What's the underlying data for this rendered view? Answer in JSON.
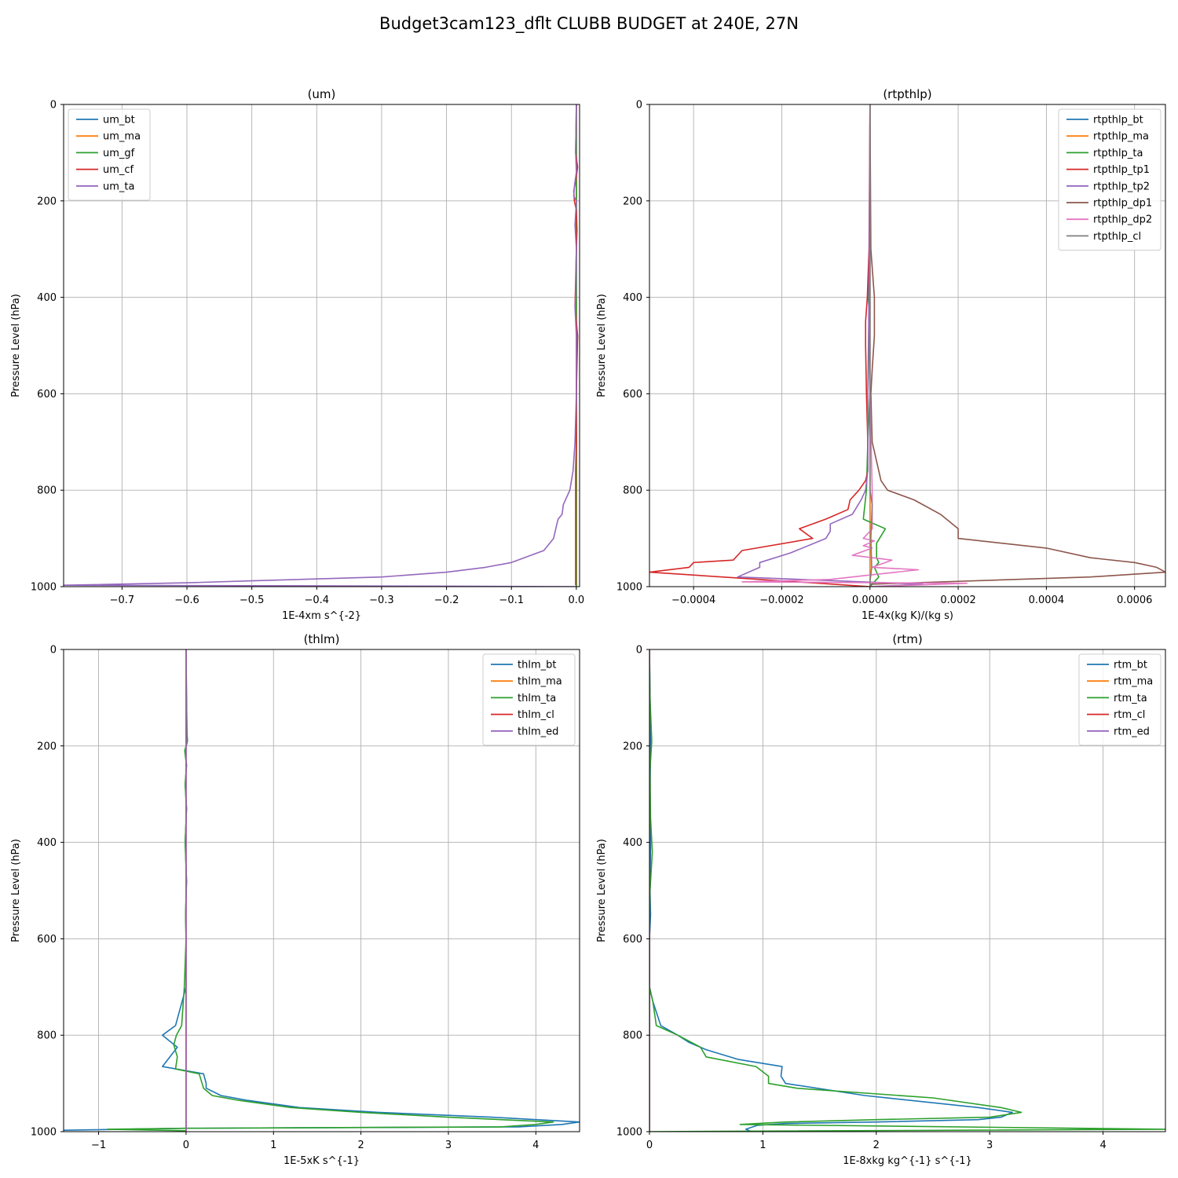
{
  "figure_title": "Budget3cam123_dflt CLUBB BUDGET at 240E, 27N",
  "chart_data": [
    {
      "type": "line",
      "title": "(um)",
      "xlabel": "1E-4xm s^{-2}",
      "ylabel": "Pressure Level (hPa)",
      "xlim": [
        -0.79,
        0.005
      ],
      "ylim": [
        1000,
        0
      ],
      "grid": true,
      "legend_position": "upper left",
      "xticks": [
        -0.7,
        -0.6,
        -0.5,
        -0.4,
        -0.3,
        -0.2,
        -0.1,
        0.0
      ],
      "xtick_labels": [
        "−0.7",
        "−0.6",
        "−0.5",
        "−0.4",
        "−0.3",
        "−0.2",
        "−0.1",
        "0.0"
      ],
      "yticks": [
        0,
        200,
        400,
        600,
        800,
        1000
      ],
      "ytick_labels": [
        "0",
        "200",
        "400",
        "600",
        "800",
        "1000"
      ],
      "series": [
        {
          "name": "um_bt",
          "color": "#1f77b4",
          "x": [
            0,
            0,
            0,
            0,
            0,
            0,
            0,
            0,
            0,
            0
          ],
          "y": [
            0,
            100,
            200,
            300,
            400,
            500,
            600,
            700,
            800,
            1000
          ]
        },
        {
          "name": "um_ma",
          "color": "#ff7f0e",
          "x": [
            0,
            0,
            0,
            0
          ],
          "y": [
            0,
            400,
            800,
            1000
          ]
        },
        {
          "name": "um_gf",
          "color": "#2ca02c",
          "x": [
            0,
            0,
            0,
            0
          ],
          "y": [
            0,
            400,
            800,
            1000
          ]
        },
        {
          "name": "um_cf",
          "color": "#d62728",
          "x": [
            0,
            -0.001,
            0.002,
            0,
            -0.004,
            -0.003,
            0,
            0.001,
            0,
            -0.002,
            0.002,
            0,
            0,
            -0.001,
            -0.001,
            -0.001,
            -0.001
          ],
          "y": [
            0,
            100,
            130,
            150,
            180,
            200,
            220,
            260,
            300,
            420,
            480,
            600,
            700,
            760,
            800,
            900,
            997
          ]
        },
        {
          "name": "um_ta",
          "color": "#9467bd",
          "x": [
            0,
            -0.001,
            0,
            -0.003,
            -0.004,
            0,
            -0.002,
            0,
            -0.001,
            -0.002,
            0,
            0,
            -0.002,
            -0.005,
            -0.01,
            -0.02,
            -0.022,
            -0.028,
            -0.03,
            -0.035,
            -0.05,
            -0.1,
            -0.14,
            -0.2,
            -0.3,
            -0.5,
            -0.6,
            -0.79,
            -0.2,
            0
          ],
          "y": [
            0,
            100,
            140,
            170,
            190,
            200,
            250,
            300,
            400,
            420,
            480,
            600,
            700,
            760,
            800,
            830,
            850,
            860,
            870,
            900,
            925,
            950,
            960,
            970,
            980,
            988,
            992,
            997,
            999,
            1000
          ]
        }
      ]
    },
    {
      "type": "line",
      "title": "(rtpthlp)",
      "xlabel": "1E-4x(kg K)/(kg s)",
      "ylabel": "Pressure Level (hPa)",
      "xlim": [
        -0.0005,
        0.00067
      ],
      "ylim": [
        1000,
        0
      ],
      "grid": true,
      "legend_position": "upper right",
      "xticks": [
        -0.0004,
        -0.0002,
        0.0,
        0.0002,
        0.0004,
        0.0006
      ],
      "xtick_labels": [
        "−0.0004",
        "−0.0002",
        "0.0000",
        "0.0002",
        "0.0004",
        "0.0006"
      ],
      "yticks": [
        0,
        200,
        400,
        600,
        800,
        1000
      ],
      "ytick_labels": [
        "0",
        "200",
        "400",
        "600",
        "800",
        "1000"
      ],
      "series": [
        {
          "name": "rtpthlp_bt",
          "color": "#1f77b4",
          "x": [
            0,
            0,
            0,
            0
          ],
          "y": [
            0,
            400,
            800,
            1000
          ]
        },
        {
          "name": "rtpthlp_ma",
          "color": "#ff7f0e",
          "x": [
            0,
            0,
            0,
            0
          ],
          "y": [
            0,
            400,
            800,
            1000
          ]
        },
        {
          "name": "rtpthlp_ta",
          "color": "#2ca02c",
          "x": [
            0,
            0,
            -3e-06,
            -4e-06,
            0,
            -2e-06,
            0,
            -5e-06,
            -8e-06,
            -1.5e-05,
            3.5e-05,
            1.5e-05,
            1.5e-05,
            2e-05,
            1e-05,
            2e-05,
            5e-06,
            0
          ],
          "y": [
            0,
            300,
            350,
            400,
            450,
            500,
            600,
            700,
            800,
            860,
            880,
            910,
            940,
            950,
            960,
            980,
            995,
            1000
          ]
        },
        {
          "name": "rtpthlp_tp1",
          "color": "#d62728",
          "x": [
            0,
            -2e-06,
            -6e-06,
            -1e-05,
            -1e-05,
            -8e-06,
            -5e-06,
            -5e-06,
            -1e-05,
            -2.5e-05,
            -4.5e-05,
            -5e-05,
            -0.0001,
            -0.00016,
            -0.00013,
            -0.00029,
            -0.00031,
            -0.0004,
            -0.00041,
            -0.0005,
            0
          ],
          "y": [
            0,
            300,
            400,
            450,
            500,
            600,
            700,
            760,
            780,
            800,
            820,
            840,
            860,
            880,
            900,
            925,
            945,
            950,
            960,
            970,
            1000
          ]
        },
        {
          "name": "rtpthlp_tp2",
          "color": "#9467bd",
          "x": [
            0,
            -2e-06,
            -5e-06,
            -5e-06,
            -1e-05,
            -2e-05,
            -4e-05,
            -9e-05,
            -9e-05,
            -0.0001,
            -0.00018,
            -0.00025,
            -0.00025,
            -0.0003,
            0.00012,
            0
          ],
          "y": [
            0,
            400,
            600,
            760,
            800,
            820,
            850,
            870,
            885,
            900,
            930,
            950,
            960,
            980,
            995,
            1000
          ]
        },
        {
          "name": "rtpthlp_dp1",
          "color": "#8c564b",
          "x": [
            0,
            2e-06,
            1e-05,
            1e-05,
            5e-06,
            2e-06,
            5e-06,
            2.5e-05,
            4e-05,
            0.0001,
            0.00016,
            0.0002,
            0.0002,
            0.0004,
            0.0005,
            0.0006,
            0.00065,
            0.00067,
            0.0005,
            0
          ],
          "y": [
            0,
            300,
            400,
            480,
            550,
            600,
            700,
            780,
            800,
            820,
            850,
            880,
            900,
            920,
            940,
            950,
            960,
            970,
            980,
            995
          ]
        },
        {
          "name": "rtpthlp_dp2",
          "color": "#e377c2",
          "x": [
            0,
            0,
            5e-06,
            5e-06,
            5e-06,
            -1.5e-05,
            1e-05,
            -1.5e-05,
            5e-06,
            -4e-05,
            5e-05,
            5e-06,
            0.00011,
            1e-05,
            -9e-05,
            -0.00029,
            0.00022,
            0
          ],
          "y": [
            0,
            600,
            800,
            850,
            880,
            900,
            905,
            915,
            920,
            935,
            945,
            960,
            965,
            975,
            985,
            990,
            993,
            1000
          ]
        },
        {
          "name": "rtpthlp_cl",
          "color": "#7f7f7f",
          "x": [
            0,
            0,
            0,
            0,
            5e-06,
            2e-06,
            4e-06,
            0,
            0
          ],
          "y": [
            0,
            400,
            600,
            800,
            830,
            900,
            960,
            990,
            1000
          ]
        }
      ]
    },
    {
      "type": "line",
      "title": "(thlm)",
      "xlabel": "1E-5xK s^{-1}",
      "ylabel": "Pressure Level (hPa)",
      "xlim": [
        -1.4,
        4.5
      ],
      "ylim": [
        1000,
        0
      ],
      "grid": true,
      "legend_position": "upper right",
      "xticks": [
        -1,
        0,
        1,
        2,
        3,
        4
      ],
      "xtick_labels": [
        "−1",
        "0",
        "1",
        "2",
        "3",
        "4"
      ],
      "yticks": [
        0,
        200,
        400,
        600,
        800,
        1000
      ],
      "ytick_labels": [
        "0",
        "200",
        "400",
        "600",
        "800",
        "1000"
      ],
      "series": [
        {
          "name": "thlm_bt",
          "color": "#1f77b4",
          "x": [
            0,
            0.005,
            0.01,
            0.015,
            -0.01,
            0.005,
            -0.01,
            0.005,
            -0.01,
            0.005,
            -0.005,
            0,
            0,
            -0.12,
            -0.27,
            -0.1,
            -0.27,
            0.2,
            0.23,
            0.23,
            0.4,
            0.7,
            1.3,
            2.2,
            3.5,
            4.5,
            4.3,
            3.8,
            0,
            -1.4
          ],
          "y": [
            0,
            100,
            170,
            190,
            210,
            240,
            280,
            330,
            400,
            480,
            550,
            600,
            700,
            780,
            800,
            825,
            865,
            880,
            900,
            910,
            925,
            935,
            950,
            960,
            970,
            980,
            985,
            990,
            993,
            997
          ]
        },
        {
          "name": "thlm_ma",
          "color": "#ff7f0e",
          "x": [
            0,
            0,
            0,
            0
          ],
          "y": [
            0,
            400,
            800,
            1000
          ]
        },
        {
          "name": "thlm_ta",
          "color": "#2ca02c",
          "x": [
            0,
            0.005,
            0.01,
            0.015,
            -0.015,
            0.005,
            -0.01,
            0.005,
            -0.01,
            0.005,
            -0.005,
            0,
            -0.02,
            -0.05,
            -0.11,
            -0.14,
            -0.1,
            -0.12,
            0.15,
            0.2,
            0.3,
            0.6,
            1.2,
            2.0,
            3.0,
            4.2,
            4.0,
            3.6,
            0,
            -0.9,
            0
          ],
          "y": [
            0,
            100,
            170,
            190,
            210,
            240,
            280,
            330,
            400,
            480,
            550,
            600,
            700,
            780,
            800,
            820,
            845,
            870,
            880,
            910,
            925,
            935,
            950,
            960,
            970,
            980,
            985,
            990,
            993,
            995,
            998
          ]
        },
        {
          "name": "thlm_cl",
          "color": "#d62728",
          "x": [
            0,
            0,
            0,
            0
          ],
          "y": [
            0,
            400,
            800,
            1000
          ]
        },
        {
          "name": "thlm_ed",
          "color": "#9467bd",
          "x": [
            0,
            0,
            0,
            0
          ],
          "y": [
            0,
            400,
            800,
            1000
          ]
        }
      ]
    },
    {
      "type": "line",
      "title": "(rtm)",
      "xlabel": "1E-8xkg kg^{-1} s^{-1}",
      "ylabel": "Pressure Level (hPa)",
      "xlim": [
        0,
        4.55
      ],
      "ylim": [
        1000,
        0
      ],
      "grid": true,
      "legend_position": "upper right",
      "xticks": [
        0,
        1,
        2,
        3,
        4
      ],
      "xtick_labels": [
        "0",
        "1",
        "2",
        "3",
        "4"
      ],
      "yticks": [
        0,
        200,
        400,
        600,
        800,
        1000
      ],
      "ytick_labels": [
        "0",
        "200",
        "400",
        "600",
        "800",
        "1000"
      ],
      "series": [
        {
          "name": "rtm_bt",
          "color": "#1f77b4",
          "x": [
            0,
            0.005,
            0.01,
            0.005,
            0.01,
            0.005,
            0.01,
            0,
            0,
            0.03,
            0.1,
            0.25,
            0.35,
            0.5,
            0.78,
            1.17,
            1.16,
            1.2,
            1.9,
            2.9,
            3.2,
            3.1,
            2.9,
            2.0,
            1.2,
            0.95,
            0.85,
            0.9
          ],
          "y": [
            0,
            100,
            200,
            300,
            400,
            500,
            550,
            600,
            700,
            730,
            780,
            800,
            815,
            830,
            850,
            865,
            885,
            900,
            925,
            950,
            960,
            970,
            975,
            980,
            983,
            987,
            995,
            1000
          ]
        },
        {
          "name": "rtm_ma",
          "color": "#ff7f0e",
          "x": [
            0,
            0,
            0,
            0
          ],
          "y": [
            0,
            400,
            800,
            1000
          ]
        },
        {
          "name": "rtm_ta",
          "color": "#2ca02c",
          "x": [
            0,
            0.005,
            0.02,
            0.005,
            0.01,
            0.025,
            0.005,
            0,
            0,
            0.03,
            0.06,
            0.25,
            0.45,
            0.5,
            0.94,
            1.05,
            1.05,
            1.3,
            2.5,
            3.1,
            3.28,
            3.0,
            2.0,
            1.2,
            0.8,
            4.55,
            0
          ],
          "y": [
            0,
            100,
            190,
            250,
            350,
            420,
            500,
            600,
            700,
            730,
            780,
            800,
            825,
            845,
            865,
            885,
            900,
            910,
            930,
            950,
            960,
            970,
            975,
            980,
            985,
            995,
            1000
          ]
        },
        {
          "name": "rtm_cl",
          "color": "#d62728",
          "x": [
            0,
            0,
            0,
            0
          ],
          "y": [
            0,
            400,
            800,
            1000
          ]
        },
        {
          "name": "rtm_ed",
          "color": "#9467bd",
          "x": [
            0,
            0,
            0,
            0
          ],
          "y": [
            0,
            400,
            800,
            1000
          ]
        }
      ]
    }
  ]
}
